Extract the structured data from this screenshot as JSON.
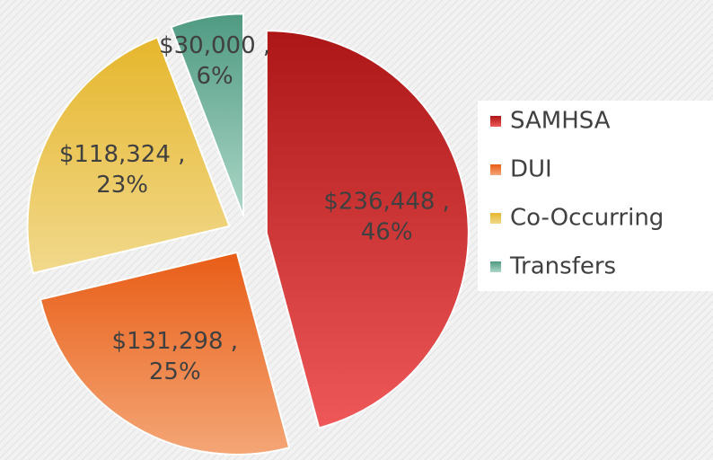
{
  "chart_data": {
    "type": "pie",
    "categories": [
      "SAMHSA",
      "DUI",
      "Co-Occurring",
      "Transfers"
    ],
    "values": [
      236448,
      131298,
      118324,
      30000
    ],
    "value_labels": [
      "$236,448 , 46%",
      "$131,298 , 25%",
      "$118,324 , 23%",
      "$30,000 , 6%"
    ],
    "colors": [
      [
        "#ad1616",
        "#ef5858"
      ],
      [
        "#e85d16",
        "#f4a676"
      ],
      [
        "#e6b62c",
        "#f1d98c"
      ],
      [
        "#4f9a82",
        "#acd7c7"
      ]
    ],
    "legend": "right"
  }
}
